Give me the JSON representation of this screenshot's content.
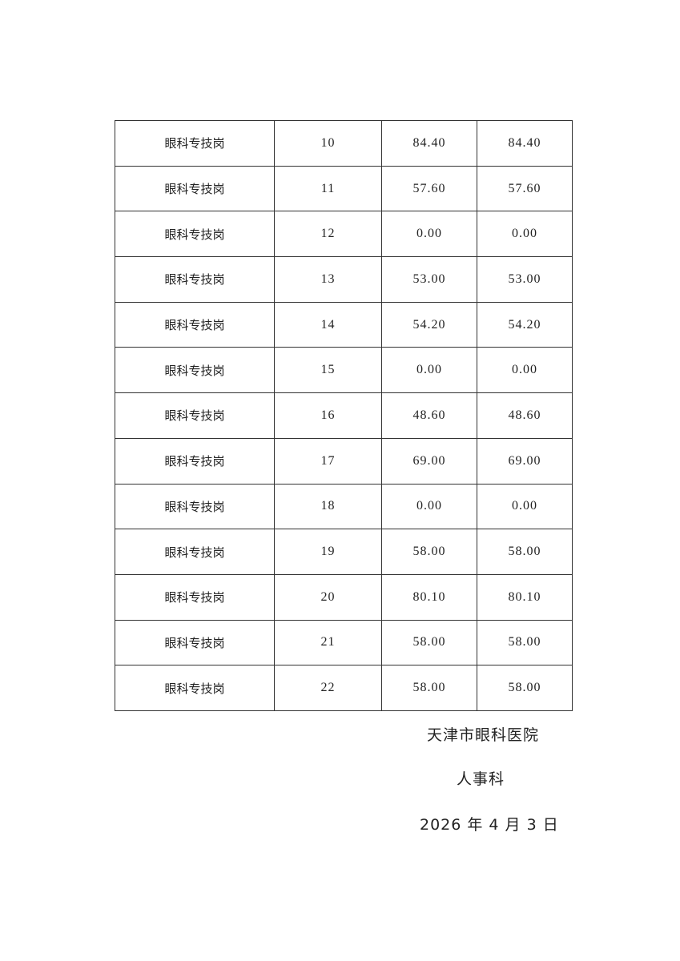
{
  "table": {
    "rows": [
      [
        "眼科专技岗",
        "10",
        "84.40",
        "84.40"
      ],
      [
        "眼科专技岗",
        "11",
        "57.60",
        "57.60"
      ],
      [
        "眼科专技岗",
        "12",
        "0.00",
        "0.00"
      ],
      [
        "眼科专技岗",
        "13",
        "53.00",
        "53.00"
      ],
      [
        "眼科专技岗",
        "14",
        "54.20",
        "54.20"
      ],
      [
        "眼科专技岗",
        "15",
        "0.00",
        "0.00"
      ],
      [
        "眼科专技岗",
        "16",
        "48.60",
        "48.60"
      ],
      [
        "眼科专技岗",
        "17",
        "69.00",
        "69.00"
      ],
      [
        "眼科专技岗",
        "18",
        "0.00",
        "0.00"
      ],
      [
        "眼科专技岗",
        "19",
        "58.00",
        "58.00"
      ],
      [
        "眼科专技岗",
        "20",
        "80.10",
        "80.10"
      ],
      [
        "眼科专技岗",
        "21",
        "58.00",
        "58.00"
      ],
      [
        "眼科专技岗",
        "22",
        "58.00",
        "58.00"
      ]
    ]
  },
  "footer": {
    "organization": "天津市眼科医院",
    "department": "人事科",
    "date": "2026 年 4 月 3 日"
  }
}
